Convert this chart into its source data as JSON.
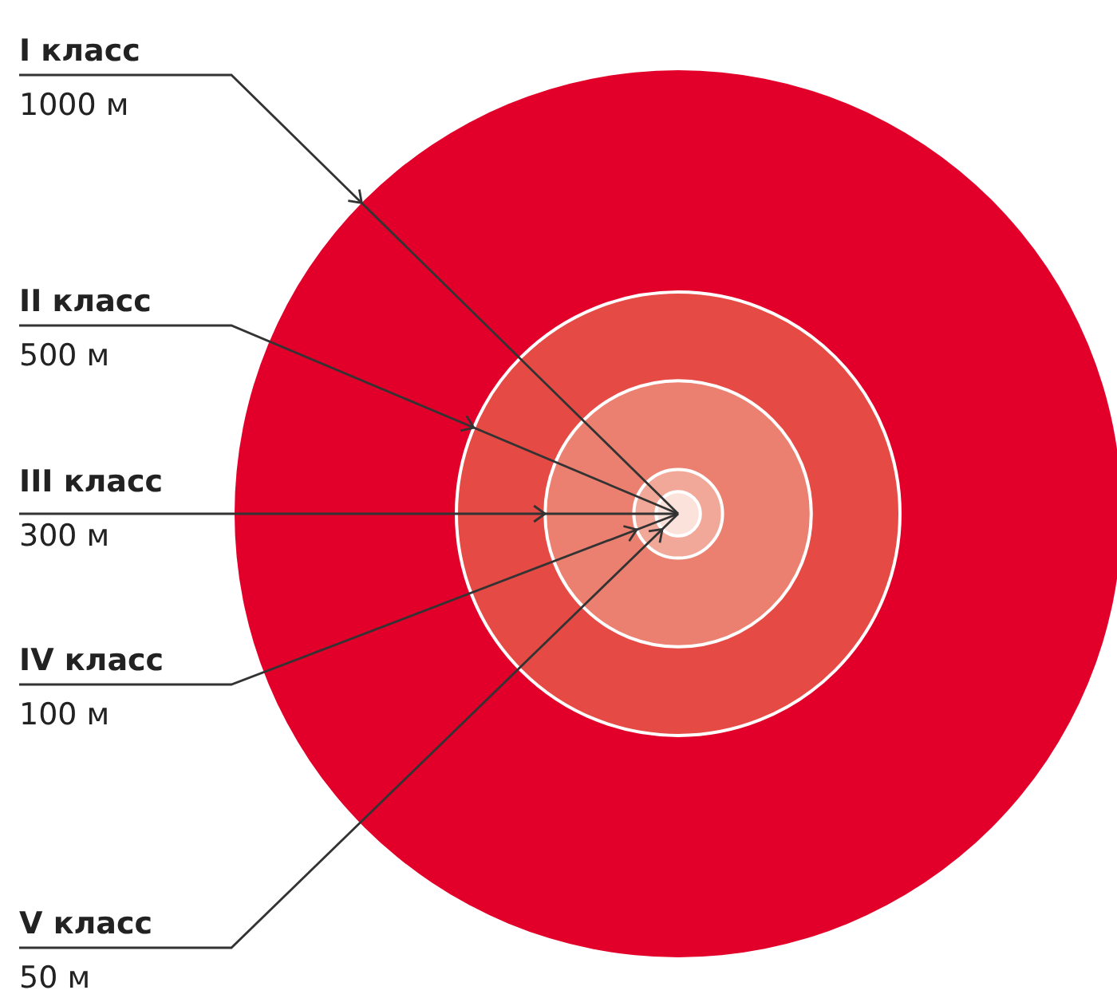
{
  "chart_data": {
    "type": "other",
    "categories": [
      "I класс",
      "II класс",
      "III класс",
      "IV класс",
      "V класс"
    ],
    "values": [
      1000,
      500,
      300,
      100,
      50
    ],
    "value_labels": [
      "1000 м",
      "500 м",
      "300 м",
      "100 м",
      "50 м"
    ],
    "colors": [
      "#e2002a",
      "#e64a45",
      "#ec8070",
      "#f2a898",
      "#fbe3dc"
    ]
  }
}
